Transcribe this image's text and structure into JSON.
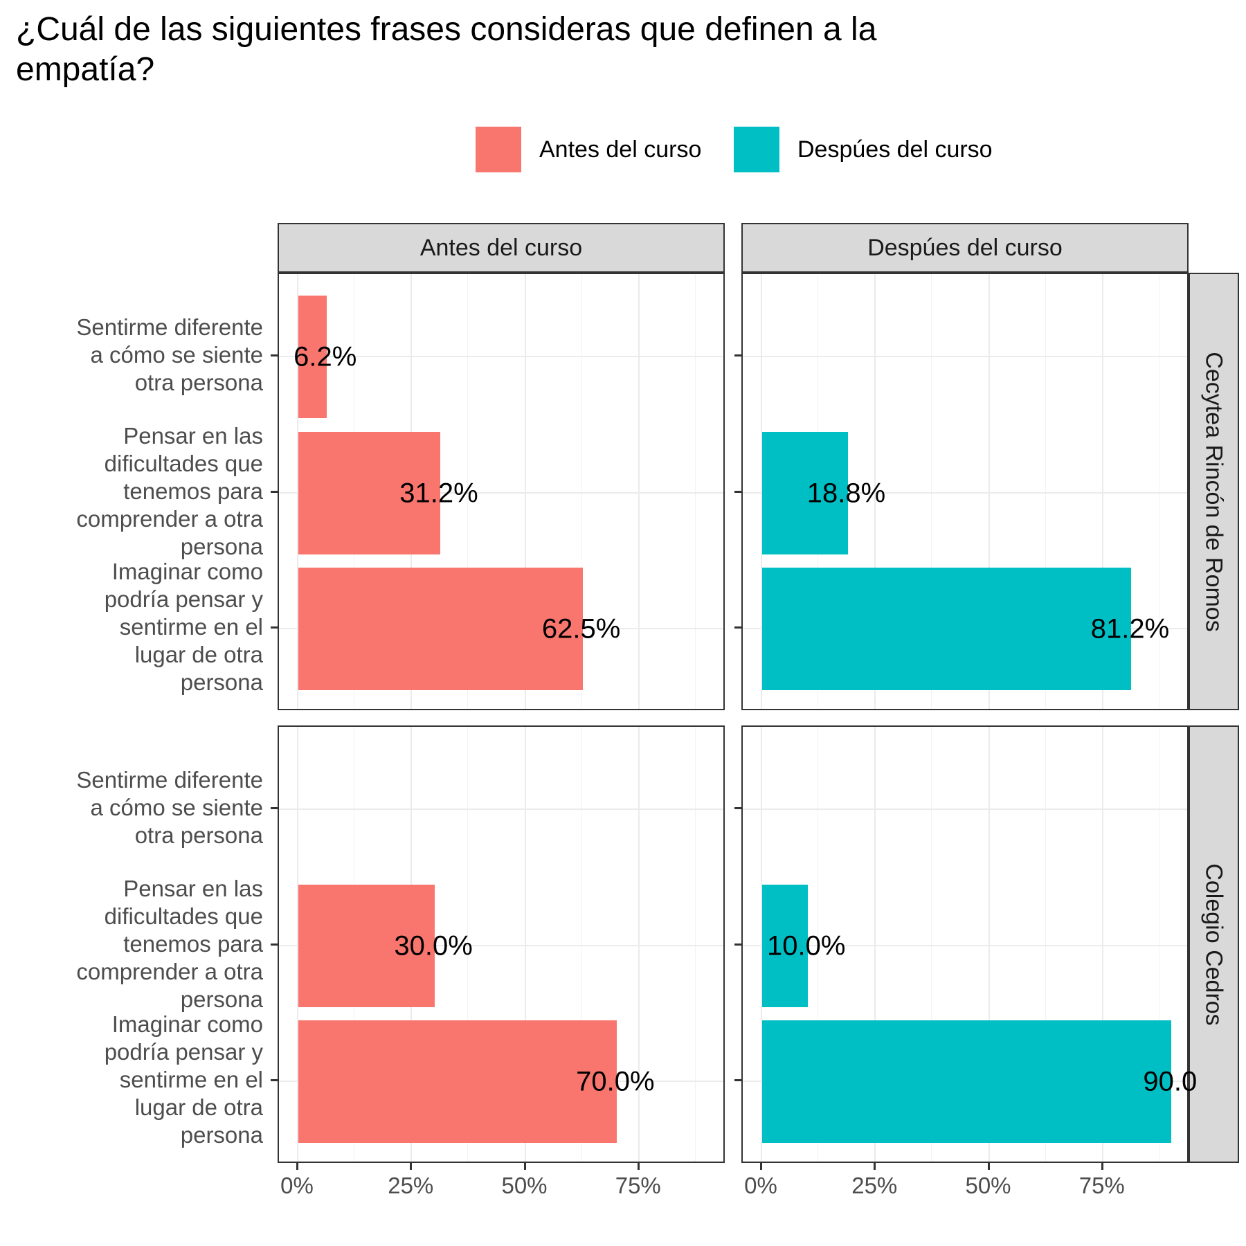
{
  "chart_data": {
    "type": "bar",
    "orientation": "horizontal",
    "title": "¿Cuál de las siguientes frases consideras que definen a la empatía?",
    "title_lines": [
      "¿Cuál de las siguientes frases consideras que definen a la",
      "empatía?"
    ],
    "legend": [
      {
        "label": "Antes del curso",
        "color": "#F8766D"
      },
      {
        "label": "Despúes del curso",
        "color": "#00BFC4"
      }
    ],
    "legend_position": "top-right",
    "columns": [
      "Antes del curso",
      "Despúes del curso"
    ],
    "rows": [
      "Cecytea Rincón de Romos",
      "Colegio Cedros"
    ],
    "categories": [
      "Sentirme diferente a cómo se siente otra persona",
      "Pensar en las dificultades que tenemos para comprender a otra persona",
      "Imaginar como podría pensar y sentirme en el lugar de otra persona"
    ],
    "category_lines": [
      [
        "Sentirme diferente",
        "a cómo se siente",
        "otra persona"
      ],
      [
        "Pensar en las",
        "dificultades que",
        "tenemos para",
        "comprender a otra",
        "persona"
      ],
      [
        "Imaginar como",
        "podría pensar y",
        "sentirme en el",
        "lugar de otra",
        "persona"
      ]
    ],
    "x_ticks": [
      "0%",
      "25%",
      "50%",
      "75%"
    ],
    "xlim": [
      0,
      95.5
    ],
    "grid": true,
    "panels": [
      {
        "row": 0,
        "col": 0,
        "values": [
          6.2,
          31.2,
          62.5
        ],
        "labels": [
          "6.2%",
          "31.2%",
          "62.5%"
        ]
      },
      {
        "row": 0,
        "col": 1,
        "values": [
          null,
          18.8,
          81.2
        ],
        "labels": [
          "",
          "18.8%",
          "81.2%"
        ]
      },
      {
        "row": 1,
        "col": 0,
        "values": [
          null,
          30.0,
          70.0
        ],
        "labels": [
          "",
          "30.0%",
          "70.0%"
        ]
      },
      {
        "row": 1,
        "col": 1,
        "values": [
          null,
          10.0,
          90.0
        ],
        "labels": [
          "",
          "10.0%",
          "90.0"
        ]
      }
    ]
  }
}
